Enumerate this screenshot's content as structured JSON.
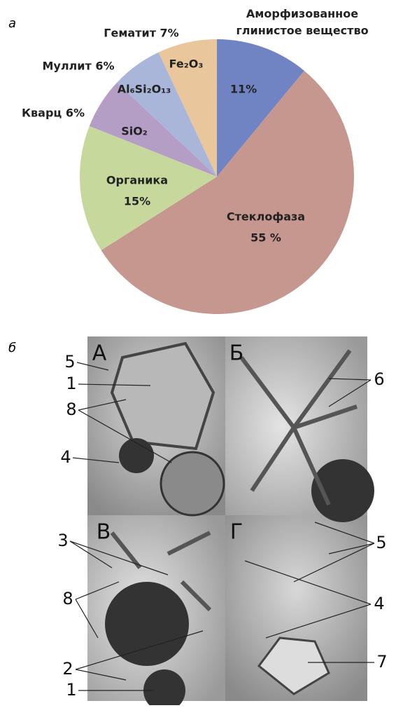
{
  "chart_data": {
    "type": "pie",
    "panel_label": "а",
    "categories": [
      "Аморфизованное\nглинистое вещество",
      "Стеклофаза",
      "Органика",
      "Кварц 6%",
      "Муллит 6%",
      "Гематит 7%"
    ],
    "values": [
      11,
      55,
      15,
      6,
      6,
      7
    ],
    "value_labels": [
      "11%",
      "55 %",
      "15%",
      null,
      null,
      null
    ],
    "inner_labels": [
      null,
      null,
      null,
      "SiO₂",
      "Al₆Si₂O₁₃",
      "Fe₂O₃"
    ],
    "colors": [
      "#7084c4",
      "#c6978e",
      "#c7d89c",
      "#b59ec6",
      "#a9b5d9",
      "#e9c69c"
    ]
  },
  "micrograph": {
    "panel_label": "б",
    "panels": [
      "А",
      "Б",
      "В",
      "Г"
    ],
    "callouts": [
      "5",
      "1",
      "8",
      "4",
      "6",
      "3",
      "8",
      "2",
      "1",
      "5",
      "4",
      "7"
    ]
  }
}
